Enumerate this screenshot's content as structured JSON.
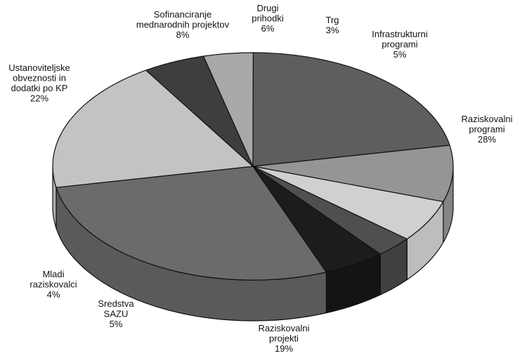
{
  "chart_data": {
    "type": "pie",
    "style": "3d",
    "title": "",
    "slices": [
      {
        "label_lines": [
          "Raziskovalni",
          "programi"
        ],
        "label": "Raziskovalni programi",
        "value": 28,
        "pct_text": "28%",
        "color": "#6b6b6b",
        "side_color": "#5a5a5a"
      },
      {
        "label_lines": [
          "Raziskovalni",
          "projekti"
        ],
        "label": "Raziskovalni projekti",
        "value": 19,
        "pct_text": "19%",
        "color": "#c3c3c3",
        "side_color": "#b0b0b0"
      },
      {
        "label_lines": [
          "Sredstva",
          "SAZU"
        ],
        "label": "Sredstva SAZU",
        "value": 5,
        "pct_text": "5%",
        "color": "#3e3e3e",
        "side_color": "#333333"
      },
      {
        "label_lines": [
          "Mladi",
          "raziskovalci"
        ],
        "label": "Mladi raziskovalci",
        "value": 4,
        "pct_text": "4%",
        "color": "#a9a9a9",
        "side_color": "#989898"
      },
      {
        "label_lines": [
          "Ustanoviteljske",
          "obveznosti in",
          "dodatki po KP"
        ],
        "label": "Ustanoviteljske obveznosti in dodatki po KP",
        "value": 22,
        "pct_text": "22%",
        "color": "#5e5e5e",
        "side_color": "#4c4c4c"
      },
      {
        "label_lines": [
          "Sofinanciranje",
          "mednarodnih projektov"
        ],
        "label": "Sofinanciranje mednarodnih projektov",
        "value": 8,
        "pct_text": "8%",
        "color": "#959595",
        "side_color": "#858585"
      },
      {
        "label_lines": [
          "Drugi",
          "prihodki"
        ],
        "label": "Drugi prihodki",
        "value": 6,
        "pct_text": "6%",
        "color": "#d0d0d0",
        "side_color": "#bdbdbd"
      },
      {
        "label_lines": [
          "Trg"
        ],
        "label": "Trg",
        "value": 3,
        "pct_text": "3%",
        "color": "#4f4f4f",
        "side_color": "#404040"
      },
      {
        "label_lines": [
          "Infrastrukturni",
          "programi"
        ],
        "label": "Infrastrukturni programi",
        "value": 5,
        "pct_text": "5%",
        "color": "#1c1c1c",
        "side_color": "#141414"
      }
    ]
  }
}
